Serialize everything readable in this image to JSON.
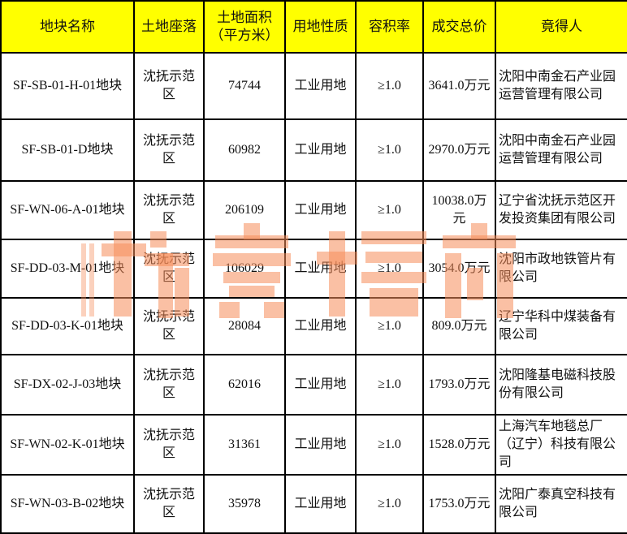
{
  "headers": [
    "地块名称",
    "土地座落",
    "土地面积（平方米）",
    "用地性质",
    "容积率",
    "成交总价",
    "竟得人"
  ],
  "rows": [
    [
      "SF-SB-01-H-01地块",
      "沈抚示范区",
      "74744",
      "工业用地",
      "≥1.0",
      "3641.0万元",
      "沈阳中南金石产业园运营管理有限公司"
    ],
    [
      "SF-SB-01-D地块",
      "沈抚示范区",
      "60982",
      "工业用地",
      "≥1.0",
      "2970.0万元",
      "沈阳中南金石产业园运营管理有限公司"
    ],
    [
      "SF-WN-06-A-01地块",
      "沈抚示范区",
      "206109",
      "工业用地",
      "≥1.0",
      "10038.0万元",
      "辽宁省沈抚示范区开发投资集团有限公司"
    ],
    [
      "SF-DD-03-M-01地块",
      "沈抚示范区",
      "106029",
      "工业用地",
      "≥1.0",
      "3054.0万元",
      "沈阳市政地铁管片有限公司"
    ],
    [
      "SF-DD-03-K-01地块",
      "沈抚示范区",
      "28084",
      "工业用地",
      "≥1.0",
      "809.0万元",
      "辽宁华科中煤装备有限公司"
    ],
    [
      "SF-DX-02-J-03地块",
      "沈抚示范区",
      "62016",
      "工业用地",
      "≥1.0",
      "1793.0万元",
      "沈阳隆基电磁科技股份有限公司"
    ],
    [
      "SF-WN-02-K-01地块",
      "沈抚示范区",
      "31361",
      "工业用地",
      "≥1.0",
      "1528.0万元",
      "上海汽车地毯总厂（辽宁）科技有限公司"
    ],
    [
      "SF-WN-03-B-02地块",
      "沈抚示范区",
      "35978",
      "工业用地",
      "≥1.0",
      "1753.0万元",
      "沈阳广泰真空科技有限公司"
    ]
  ],
  "watermark": {
    "text": "东房楼市",
    "sub": "Dongjs"
  },
  "colors": {
    "header_bg": "#ffff00",
    "border": "#000000",
    "watermark": "#f58c5a"
  }
}
